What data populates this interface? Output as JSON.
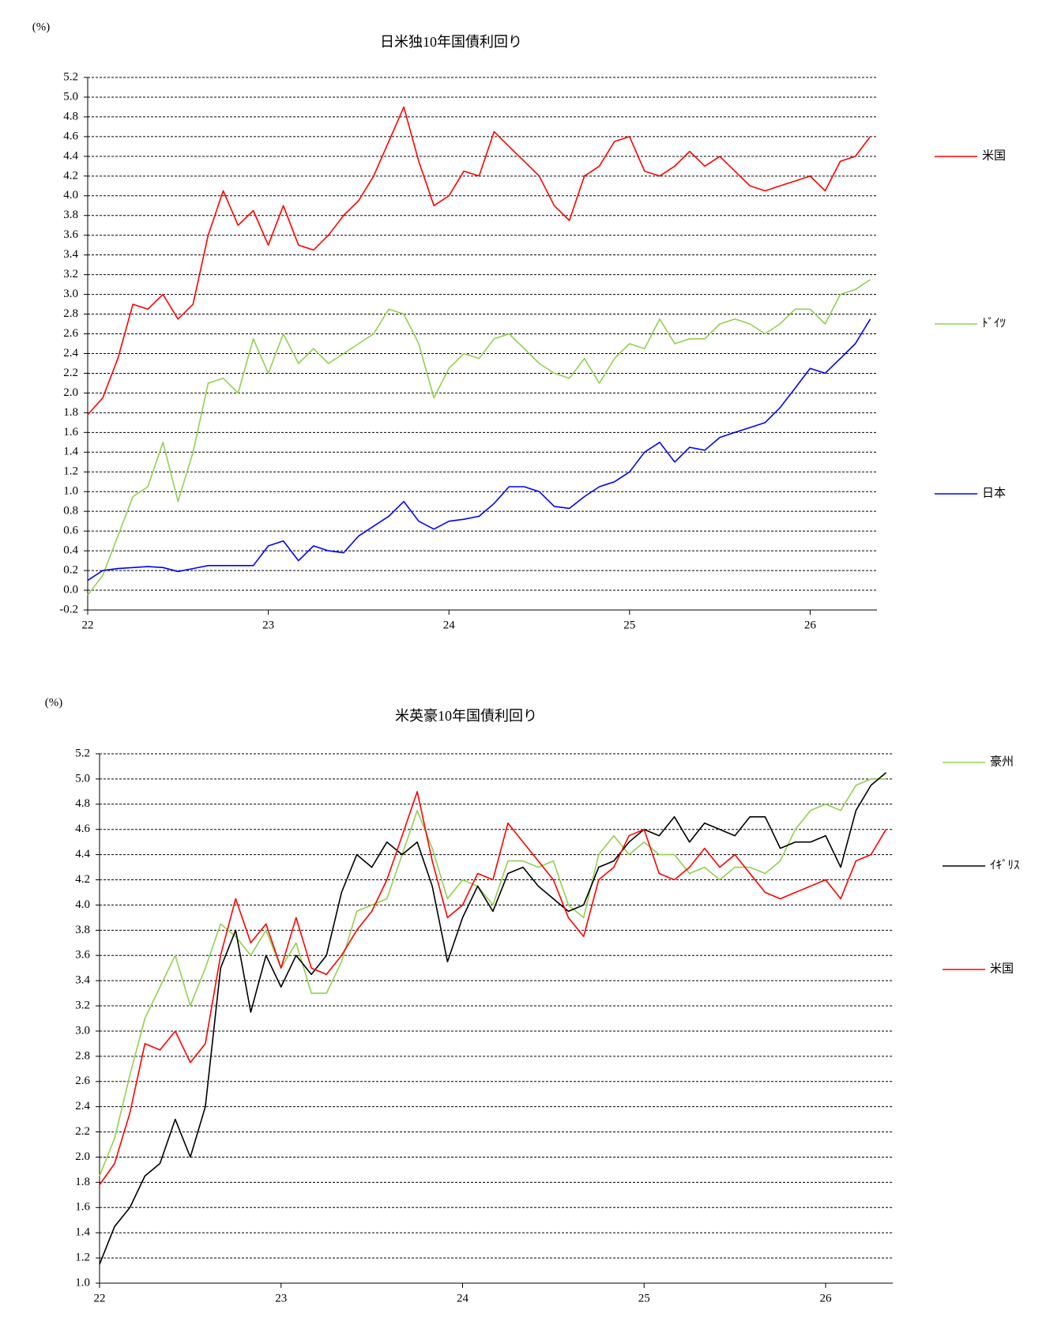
{
  "chart_data": [
    {
      "type": "line",
      "title": "日米独10年国債利回り",
      "y_unit": "(%)",
      "x": [
        22,
        22.083,
        22.167,
        22.25,
        22.333,
        22.417,
        22.5,
        22.583,
        22.667,
        22.75,
        22.833,
        22.917,
        23,
        23.083,
        23.167,
        23.25,
        23.333,
        23.417,
        23.5,
        23.583,
        23.667,
        23.75,
        23.833,
        23.917,
        24,
        24.083,
        24.167,
        24.25,
        24.333,
        24.417,
        24.5,
        24.583,
        24.667,
        24.75,
        24.833,
        24.917,
        25,
        25.083,
        25.167,
        25.25,
        25.333,
        25.417,
        25.5,
        25.583,
        25.667,
        25.75,
        25.833,
        25.917,
        26,
        26.083,
        26.167,
        26.25,
        26.333
      ],
      "xlim": [
        22,
        26.37
      ],
      "xticks": [
        22,
        23,
        24,
        25,
        26
      ],
      "ylim": [
        -0.2,
        5.2
      ],
      "yticks": [
        -0.2,
        {
          "value": 0,
          "label": "0.0"
        },
        0.2,
        0.4,
        0.6,
        0.8,
        {
          "value": 1,
          "label": "1.0"
        },
        1.2,
        1.4,
        1.6,
        1.8,
        {
          "value": 2,
          "label": "2.0"
        },
        2.2,
        2.4,
        2.6,
        2.8,
        {
          "value": 3,
          "label": "3.0"
        },
        3.2,
        3.4,
        3.6,
        3.8,
        {
          "value": 4,
          "label": "4.0"
        },
        4.2,
        4.4,
        4.6,
        4.8,
        {
          "value": 5,
          "label": "5.0"
        },
        5.2
      ],
      "grid": true,
      "legend": "right",
      "series": [
        {
          "name": "米国",
          "color": "#ff0000",
          "values": [
            1.78,
            1.95,
            2.35,
            2.9,
            2.85,
            3.0,
            2.75,
            2.9,
            3.6,
            4.05,
            3.7,
            3.85,
            3.5,
            3.9,
            3.5,
            3.45,
            3.6,
            3.8,
            3.95,
            4.2,
            4.55,
            4.9,
            4.35,
            3.9,
            4.0,
            4.25,
            4.2,
            4.65,
            4.5,
            4.35,
            4.2,
            3.9,
            3.75,
            4.2,
            4.3,
            4.55,
            4.6,
            4.25,
            4.2,
            4.3,
            4.45,
            4.3,
            4.4,
            4.25,
            4.1,
            4.05,
            4.1,
            4.15,
            4.2,
            4.05,
            4.35,
            4.4,
            4.6
          ]
        },
        {
          "name": "ﾄﾞｲﾂ",
          "color": "#92d050",
          "values": [
            -0.05,
            0.15,
            0.55,
            0.95,
            1.05,
            1.5,
            0.9,
            1.4,
            2.1,
            2.15,
            2.0,
            2.55,
            2.2,
            2.6,
            2.3,
            2.45,
            2.3,
            2.4,
            2.5,
            2.6,
            2.85,
            2.8,
            2.5,
            1.95,
            2.25,
            2.4,
            2.35,
            2.55,
            2.6,
            2.45,
            2.3,
            2.2,
            2.15,
            2.35,
            2.1,
            2.35,
            2.5,
            2.45,
            2.75,
            2.5,
            2.55,
            2.55,
            2.7,
            2.75,
            2.7,
            2.6,
            2.7,
            2.85,
            2.85,
            2.7,
            3.0,
            3.05,
            3.15
          ]
        },
        {
          "name": "日本",
          "color": "#0000ff",
          "values": [
            0.1,
            0.2,
            0.22,
            0.23,
            0.24,
            0.23,
            0.19,
            0.22,
            0.25,
            0.25,
            0.25,
            0.25,
            0.45,
            0.5,
            0.3,
            0.45,
            0.4,
            0.38,
            0.55,
            0.65,
            0.75,
            0.9,
            0.7,
            0.62,
            0.7,
            0.72,
            0.75,
            0.88,
            1.05,
            1.05,
            1.0,
            0.85,
            0.83,
            0.95,
            1.05,
            1.1,
            1.2,
            1.4,
            1.5,
            1.3,
            1.45,
            1.42,
            1.55,
            1.6,
            1.65,
            1.7,
            1.85,
            2.05,
            2.25,
            2.2,
            2.35,
            2.5,
            2.75
          ]
        }
      ]
    },
    {
      "type": "line",
      "title": "米英豪10年国債利回り",
      "y_unit": "(%)",
      "x": [
        22,
        22.083,
        22.167,
        22.25,
        22.333,
        22.417,
        22.5,
        22.583,
        22.667,
        22.75,
        22.833,
        22.917,
        23,
        23.083,
        23.167,
        23.25,
        23.333,
        23.417,
        23.5,
        23.583,
        23.667,
        23.75,
        23.833,
        23.917,
        24,
        24.083,
        24.167,
        24.25,
        24.333,
        24.417,
        24.5,
        24.583,
        24.667,
        24.75,
        24.833,
        24.917,
        25,
        25.083,
        25.167,
        25.25,
        25.333,
        25.417,
        25.5,
        25.583,
        25.667,
        25.75,
        25.833,
        25.917,
        26,
        26.083,
        26.167,
        26.25,
        26.333
      ],
      "xlim": [
        22,
        26.37
      ],
      "xticks": [
        22,
        23,
        24,
        25,
        26
      ],
      "ylim": [
        1.0,
        5.2
      ],
      "yticks": [
        {
          "value": 1,
          "label": "1.0"
        },
        1.2,
        1.4,
        1.6,
        1.8,
        {
          "value": 2,
          "label": "2.0"
        },
        2.2,
        2.4,
        2.6,
        2.8,
        {
          "value": 3,
          "label": "3.0"
        },
        3.2,
        3.4,
        3.6,
        3.8,
        {
          "value": 4,
          "label": "4.0"
        },
        4.2,
        4.4,
        4.6,
        4.8,
        {
          "value": 5,
          "label": "5.0"
        },
        5.2
      ],
      "grid": true,
      "legend": "right",
      "series": [
        {
          "name": "豪州",
          "color": "#92d050",
          "values": [
            1.85,
            2.15,
            2.65,
            3.1,
            3.35,
            3.6,
            3.2,
            3.5,
            3.85,
            3.75,
            3.6,
            3.8,
            3.5,
            3.7,
            3.3,
            3.3,
            3.55,
            3.95,
            4.0,
            4.05,
            4.4,
            4.75,
            4.45,
            4.05,
            4.2,
            4.15,
            4.0,
            4.35,
            4.35,
            4.3,
            4.35,
            4.0,
            3.9,
            4.4,
            4.55,
            4.4,
            4.5,
            4.4,
            4.4,
            4.25,
            4.3,
            4.2,
            4.3,
            4.3,
            4.25,
            4.35,
            4.6,
            4.75,
            4.8,
            4.75,
            4.95,
            5.0,
            5.0
          ]
        },
        {
          "name": "ｲｷﾞﾘｽ",
          "color": "#000000",
          "values": [
            1.15,
            1.45,
            1.6,
            1.85,
            1.95,
            2.3,
            2.0,
            2.4,
            3.5,
            3.8,
            3.15,
            3.6,
            3.35,
            3.6,
            3.45,
            3.6,
            4.1,
            4.4,
            4.3,
            4.5,
            4.4,
            4.5,
            4.15,
            3.55,
            3.9,
            4.15,
            3.95,
            4.25,
            4.3,
            4.15,
            4.05,
            3.95,
            4.0,
            4.3,
            4.35,
            4.5,
            4.6,
            4.55,
            4.7,
            4.5,
            4.65,
            4.6,
            4.55,
            4.7,
            4.7,
            4.45,
            4.5,
            4.5,
            4.55,
            4.3,
            4.75,
            4.95,
            5.05
          ]
        },
        {
          "name": "米国",
          "color": "#ff0000",
          "values": [
            1.78,
            1.95,
            2.35,
            2.9,
            2.85,
            3.0,
            2.75,
            2.9,
            3.6,
            4.05,
            3.7,
            3.85,
            3.5,
            3.9,
            3.5,
            3.45,
            3.6,
            3.8,
            3.95,
            4.2,
            4.55,
            4.9,
            4.35,
            3.9,
            4.0,
            4.25,
            4.2,
            4.65,
            4.5,
            4.35,
            4.2,
            3.9,
            3.75,
            4.2,
            4.3,
            4.55,
            4.6,
            4.25,
            4.2,
            4.3,
            4.45,
            4.3,
            4.4,
            4.25,
            4.1,
            4.05,
            4.1,
            4.15,
            4.2,
            4.05,
            4.35,
            4.4,
            4.6
          ]
        }
      ]
    }
  ]
}
